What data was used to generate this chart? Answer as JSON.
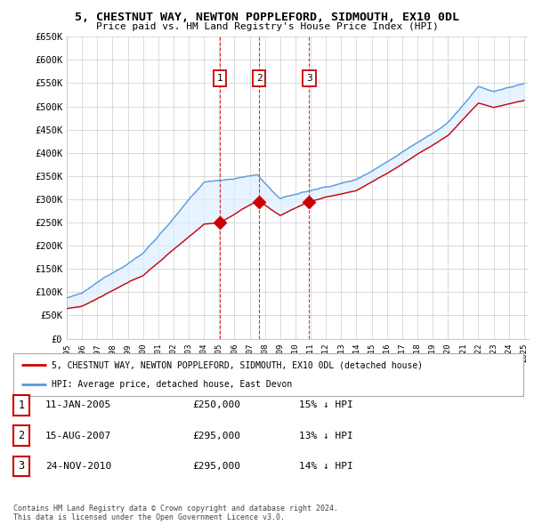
{
  "title": "5, CHESTNUT WAY, NEWTON POPPLEFORD, SIDMOUTH, EX10 0DL",
  "subtitle": "Price paid vs. HM Land Registry's House Price Index (HPI)",
  "ylabel_ticks": [
    "£0",
    "£50K",
    "£100K",
    "£150K",
    "£200K",
    "£250K",
    "£300K",
    "£350K",
    "£400K",
    "£450K",
    "£500K",
    "£550K",
    "£600K",
    "£650K"
  ],
  "ytick_values": [
    0,
    50000,
    100000,
    150000,
    200000,
    250000,
    300000,
    350000,
    400000,
    450000,
    500000,
    550000,
    600000,
    650000
  ],
  "ylim": [
    0,
    650000
  ],
  "sale_dates": [
    2005.04,
    2007.62,
    2010.9
  ],
  "sale_prices": [
    250000,
    295000,
    295000
  ],
  "sale_labels": [
    "1",
    "2",
    "3"
  ],
  "legend_line1": "5, CHESTNUT WAY, NEWTON POPPLEFORD, SIDMOUTH, EX10 0DL (detached house)",
  "legend_line2": "HPI: Average price, detached house, East Devon",
  "table_rows": [
    [
      "1",
      "11-JAN-2005",
      "£250,000",
      "15% ↓ HPI"
    ],
    [
      "2",
      "15-AUG-2007",
      "£295,000",
      "13% ↓ HPI"
    ],
    [
      "3",
      "24-NOV-2010",
      "£295,000",
      "14% ↓ HPI"
    ]
  ],
  "footnote1": "Contains HM Land Registry data © Crown copyright and database right 2024.",
  "footnote2": "This data is licensed under the Open Government Licence v3.0.",
  "hpi_color": "#5599dd",
  "hpi_fill_color": "#ddeeff",
  "price_color": "#cc0000",
  "sale_marker_color": "#cc0000",
  "vline_color": "#cc0000",
  "background_color": "#ffffff",
  "grid_color": "#cccccc"
}
